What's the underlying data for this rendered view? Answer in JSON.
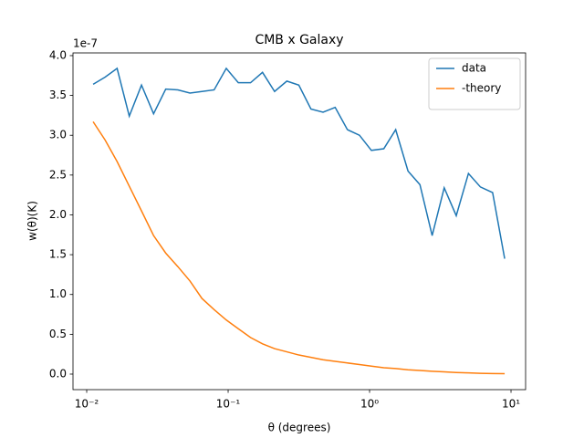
{
  "chart_data": {
    "type": "line",
    "title": "CMB x Galaxy",
    "xlabel": "θ (degrees)",
    "ylabel": "w(θ)(K)",
    "y_offset_label": "1e-7",
    "x": [
      0.0111,
      0.0135,
      0.0164,
      0.02,
      0.0244,
      0.0297,
      0.0362,
      0.0441,
      0.0537,
      0.0653,
      0.0796,
      0.097,
      0.118,
      0.144,
      0.175,
      0.213,
      0.26,
      0.316,
      0.385,
      0.469,
      0.571,
      0.697,
      0.848,
      1.03,
      1.26,
      1.53,
      1.87,
      2.27,
      2.77,
      3.37,
      4.1,
      5.0,
      6.08,
      7.41,
      9.02
    ],
    "series": [
      {
        "name": "data",
        "color": "#1f77b4",
        "values": [
          3.64,
          3.73,
          3.84,
          3.24,
          3.63,
          3.27,
          3.58,
          3.57,
          3.53,
          3.55,
          3.57,
          3.84,
          3.66,
          3.66,
          3.79,
          3.55,
          3.68,
          3.63,
          3.33,
          3.29,
          3.35,
          3.07,
          3.0,
          2.81,
          2.83,
          3.07,
          2.55,
          2.38,
          1.74,
          2.34,
          1.99,
          2.52,
          2.35,
          2.28,
          1.45
        ]
      },
      {
        "name": "-theory",
        "color": "#ff7f0e",
        "values": [
          3.17,
          2.94,
          2.67,
          2.36,
          2.05,
          1.74,
          1.52,
          1.35,
          1.17,
          0.95,
          0.81,
          0.68,
          0.57,
          0.46,
          0.38,
          0.32,
          0.28,
          0.24,
          0.21,
          0.18,
          0.16,
          0.14,
          0.12,
          0.1,
          0.08,
          0.07,
          0.055,
          0.045,
          0.035,
          0.028,
          0.02,
          0.015,
          0.01,
          0.007,
          0.005
        ]
      }
    ],
    "xscale": "log",
    "xlim": [
      0.008,
      12.68
    ],
    "ylim": [
      -0.195,
      4.034
    ],
    "xticks": [
      {
        "value": 0.01,
        "label": "10⁻²"
      },
      {
        "value": 0.1,
        "label": "10⁻¹"
      },
      {
        "value": 1,
        "label": "10⁰"
      },
      {
        "value": 10,
        "label": "10¹"
      }
    ],
    "yticks": [
      {
        "value": 0,
        "label": "0.0"
      },
      0.5,
      {
        "value": 1,
        "label": "1.0"
      },
      1.5,
      {
        "value": 2,
        "label": "2.0"
      },
      2.5,
      {
        "value": 3,
        "label": "3.0"
      },
      3.5,
      {
        "value": 4,
        "label": "4.0"
      }
    ],
    "legend": "upper right"
  }
}
